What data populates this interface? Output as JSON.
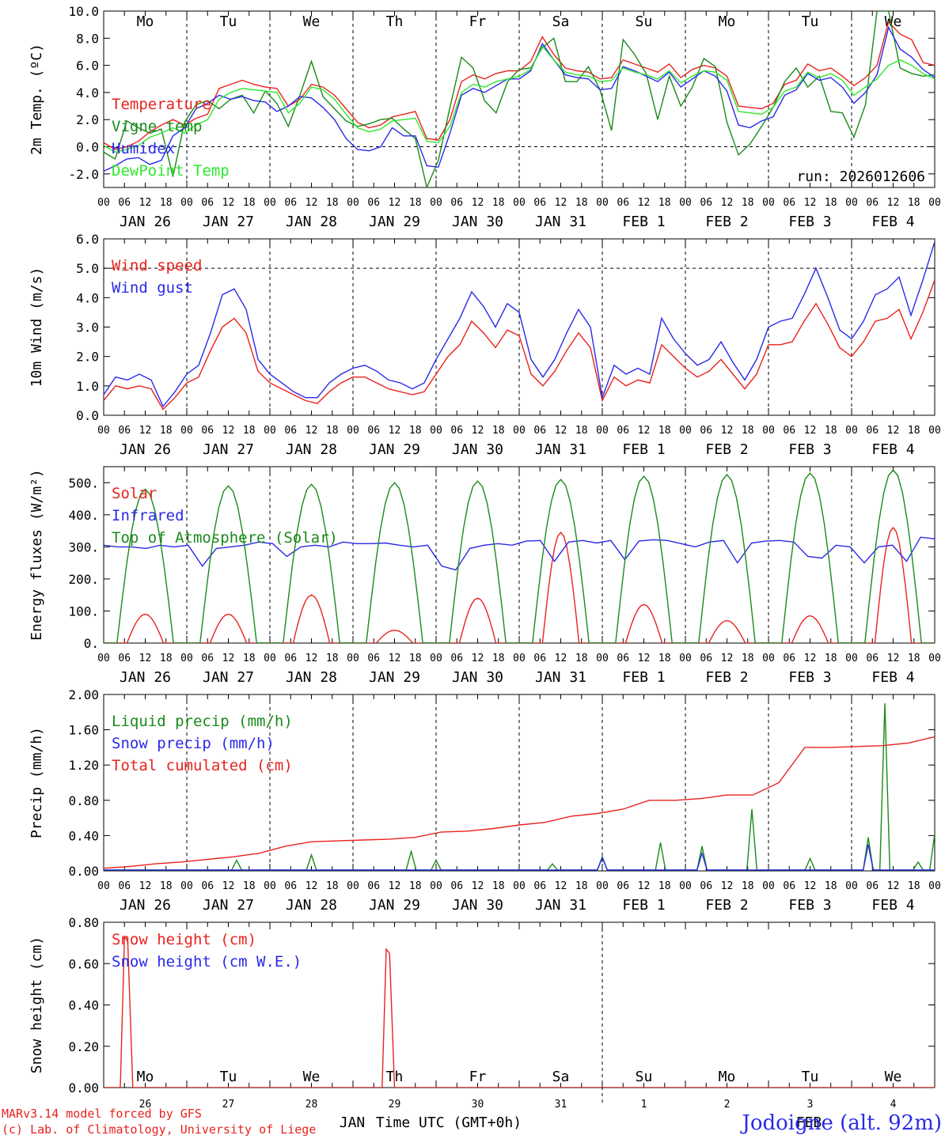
{
  "chart_data": [
    {
      "type": "line",
      "ylabel": "2m Temp. (ºC)",
      "ylim": [
        -3,
        10
      ],
      "yticks": [
        -2,
        0,
        2,
        4,
        6,
        8,
        10
      ],
      "ytick_labels": [
        "-2.0",
        "0.0",
        "2.0",
        "4.0",
        "6.0",
        "8.0",
        "10.0"
      ],
      "zero_line": 0,
      "weekdays": [
        "Mo",
        "Tu",
        "We",
        "Th",
        "Fr",
        "Sa",
        "Su",
        "Mo",
        "Tu",
        "We"
      ],
      "weekday_colors": [
        "#000000",
        "#000000",
        "#000000",
        "#000000",
        "#000000",
        "#e8231e",
        "#e8231e",
        "#000000",
        "#000000",
        "#000000"
      ],
      "annotation": "run: 2026012606",
      "series": [
        {
          "name": "Temperature",
          "color": "#e8231e",
          "values": [
            0.3,
            -0.2,
            0,
            0.4,
            1.1,
            1.6,
            2.0,
            1.6,
            2.1,
            2.4,
            4.3,
            4.6,
            4.9,
            4.6,
            4.4,
            4.3,
            3.0,
            3.5,
            4.6,
            4.4,
            3.8,
            2.8,
            1.8,
            1.4,
            1.6,
            2.2,
            2.4,
            2.6,
            0.6,
            0.5,
            2.0,
            4.8,
            5.3,
            5.0,
            5.4,
            5.6,
            5.6,
            6.3,
            8.1,
            6.8,
            5.8,
            5.6,
            5.5,
            5.0,
            5.1,
            6.4,
            6.1,
            5.8,
            5.5,
            6.1,
            5.1,
            5.7,
            6.0,
            5.8,
            5.2,
            3.0,
            2.9,
            2.8,
            3.2,
            4.6,
            4.9,
            6.1,
            5.6,
            5.8,
            5.2,
            4.5,
            5.1,
            6.0,
            9.2,
            8.3,
            7.9,
            6.2,
            6.0
          ]
        },
        {
          "name": "Vigne temp",
          "color": "#1a8a1a",
          "values": [
            -0.4,
            -0.9,
            1.9,
            1.4,
            1.0,
            1.3,
            -2.2,
            1.8,
            3.1,
            3.4,
            2.8,
            3.5,
            3.8,
            2.5,
            4.1,
            3.2,
            1.5,
            3.8,
            6.3,
            3.7,
            2.8,
            1.9,
            1.5,
            1.7,
            2.0,
            2.1,
            1.3,
            0.6,
            -3.0,
            -1.0,
            2.9,
            6.6,
            5.8,
            3.4,
            2.5,
            4.8,
            5.7,
            5.8,
            7.3,
            8.0,
            4.8,
            4.8,
            5.9,
            4.2,
            1.2,
            7.9,
            6.8,
            5.4,
            2.0,
            5.2,
            3.0,
            4.4,
            6.5,
            5.9,
            1.8,
            -0.6,
            0.2,
            1.5,
            2.9,
            4.8,
            5.8,
            4.4,
            5.2,
            2.6,
            2.5,
            0.7,
            3.1,
            10.0,
            10.0,
            5.8,
            5.4,
            5.2,
            5.3
          ]
        },
        {
          "name": "Humidex",
          "color": "#2a2ae8",
          "values": [
            -1.8,
            -1.4,
            -0.9,
            -0.8,
            -1.3,
            -1.0,
            0.8,
            1.4,
            2.8,
            3.2,
            3.8,
            3.5,
            3.7,
            3.4,
            3.3,
            2.6,
            3.0,
            3.7,
            3.6,
            2.9,
            2.0,
            0.6,
            -0.2,
            -0.3,
            0.0,
            1.4,
            0.8,
            0.8,
            -1.4,
            -1.5,
            1.0,
            3.8,
            4.3,
            4.0,
            4.5,
            5.0,
            5.0,
            5.6,
            7.6,
            6.4,
            5.3,
            5.1,
            5.0,
            4.2,
            4.3,
            5.9,
            5.6,
            5.2,
            4.8,
            5.5,
            4.4,
            5.0,
            5.6,
            5.2,
            4.1,
            1.6,
            1.4,
            1.9,
            2.2,
            3.8,
            4.2,
            5.4,
            4.9,
            5.1,
            4.4,
            3.2,
            4.0,
            5.3,
            8.8,
            7.2,
            6.6,
            5.7,
            5.1
          ]
        },
        {
          "name": "DewPoint Temp",
          "color": "#2ee82e",
          "values": [
            0.1,
            -0.4,
            -0.2,
            0.1,
            0.7,
            1.0,
            1.4,
            1.0,
            1.6,
            2.0,
            3.5,
            4.0,
            4.3,
            4.2,
            4.1,
            4.0,
            2.5,
            3.2,
            4.4,
            4.2,
            3.5,
            2.4,
            1.4,
            1.1,
            1.3,
            1.9,
            2.0,
            2.1,
            0.4,
            0.3,
            1.5,
            4.0,
            4.6,
            4.4,
            4.8,
            5.0,
            5.2,
            5.7,
            7.4,
            6.4,
            5.5,
            5.3,
            5.2,
            4.8,
            4.9,
            5.8,
            5.5,
            5.3,
            5.0,
            5.6,
            4.7,
            5.2,
            5.6,
            5.5,
            4.9,
            2.6,
            2.5,
            2.4,
            2.9,
            4.1,
            4.4,
            5.5,
            5.1,
            5.4,
            4.9,
            3.8,
            4.4,
            5.0,
            6.0,
            6.4,
            6.0,
            5.4,
            5.0
          ]
        }
      ]
    },
    {
      "type": "line",
      "ylabel": "10m Wind (m/s)",
      "ylim": [
        0,
        6
      ],
      "yticks": [
        0,
        1,
        2,
        3,
        4,
        5,
        6
      ],
      "ytick_labels": [
        "0.0",
        "1.0",
        "2.0",
        "3.0",
        "4.0",
        "5.0",
        "6.0"
      ],
      "ref_line": 5,
      "series": [
        {
          "name": "Wind speed",
          "color": "#e8231e",
          "values": [
            0.5,
            1.0,
            0.9,
            1.0,
            0.9,
            0.2,
            0.6,
            1.1,
            1.3,
            2.2,
            3.0,
            3.3,
            2.8,
            1.5,
            1.1,
            0.9,
            0.7,
            0.5,
            0.4,
            0.8,
            1.1,
            1.3,
            1.3,
            1.1,
            0.9,
            0.8,
            0.7,
            0.8,
            1.4,
            2.0,
            2.4,
            3.2,
            2.8,
            2.3,
            2.9,
            2.7,
            1.4,
            1.0,
            1.5,
            2.2,
            2.8,
            2.3,
            0.5,
            1.3,
            1.0,
            1.2,
            1.1,
            2.4,
            2.0,
            1.6,
            1.3,
            1.5,
            1.9,
            1.4,
            0.9,
            1.4,
            2.4,
            2.4,
            2.5,
            3.2,
            3.8,
            3.1,
            2.3,
            2.0,
            2.5,
            3.2,
            3.3,
            3.6,
            2.6,
            3.5,
            4.6
          ]
        },
        {
          "name": "Wind gust",
          "color": "#2a2ae8",
          "values": [
            0.7,
            1.3,
            1.2,
            1.4,
            1.2,
            0.3,
            0.8,
            1.4,
            1.7,
            2.8,
            4.1,
            4.3,
            3.6,
            1.9,
            1.4,
            1.1,
            0.8,
            0.6,
            0.6,
            1.1,
            1.4,
            1.6,
            1.7,
            1.5,
            1.2,
            1.1,
            0.9,
            1.1,
            1.9,
            2.6,
            3.3,
            4.2,
            3.7,
            3.0,
            3.8,
            3.5,
            1.9,
            1.3,
            1.9,
            2.8,
            3.6,
            3.0,
            0.6,
            1.7,
            1.4,
            1.6,
            1.4,
            3.3,
            2.6,
            2.1,
            1.7,
            1.9,
            2.5,
            1.8,
            1.2,
            1.9,
            3.0,
            3.2,
            3.3,
            4.1,
            5.0,
            4.0,
            2.9,
            2.6,
            3.2,
            4.1,
            4.3,
            4.7,
            3.4,
            4.6,
            5.9
          ]
        }
      ]
    },
    {
      "type": "line",
      "ylabel": "Energy fluxes (W/m²)",
      "ylim": [
        0,
        550
      ],
      "yticks": [
        0,
        100,
        200,
        300,
        400,
        500
      ],
      "ytick_labels": [
        "0.",
        "100.",
        "200.",
        "300.",
        "400.",
        "500."
      ],
      "series": [
        {
          "name": "Solar",
          "color": "#e8231e",
          "peaks": [
            90,
            90,
            150,
            40,
            140,
            345,
            120,
            70,
            85,
            360
          ]
        },
        {
          "name": "Infrared",
          "color": "#2a2ae8",
          "values": [
            305,
            300,
            300,
            295,
            305,
            300,
            305,
            240,
            295,
            300,
            305,
            315,
            310,
            270,
            300,
            305,
            300,
            315,
            310,
            310,
            312,
            305,
            300,
            305,
            240,
            228,
            295,
            305,
            310,
            305,
            318,
            320,
            255,
            315,
            320,
            312,
            320,
            260,
            318,
            322,
            320,
            310,
            300,
            315,
            320,
            250,
            312,
            318,
            320,
            315,
            270,
            265,
            305,
            300,
            250,
            300,
            305,
            255,
            330,
            325
          ]
        },
        {
          "name": "Top of Atmosphere (Solar)",
          "color": "#1a8a1a",
          "peaks": [
            480,
            490,
            495,
            500,
            505,
            510,
            520,
            525,
            530,
            540
          ]
        }
      ]
    },
    {
      "type": "line",
      "ylabel": "Precip (mm/h)",
      "ylim": [
        0,
        2
      ],
      "yticks": [
        0,
        0.4,
        0.8,
        1.2,
        1.6,
        2.0
      ],
      "ytick_labels": [
        "0.00",
        "0.40",
        "0.80",
        "1.20",
        "1.60",
        "2.00"
      ],
      "series": [
        {
          "name": "Liquid precip (mm/h)",
          "color": "#1a8a1a",
          "events": [
            [
              1.6,
              0.12
            ],
            [
              2.5,
              0.18
            ],
            [
              3.7,
              0.22
            ],
            [
              4.0,
              0.12
            ],
            [
              5.4,
              0.08
            ],
            [
              6.0,
              0.16
            ],
            [
              6.7,
              0.32
            ],
            [
              7.2,
              0.28
            ],
            [
              7.8,
              0.7
            ],
            [
              8.5,
              0.14
            ],
            [
              9.2,
              0.38
            ],
            [
              9.4,
              1.9
            ],
            [
              9.8,
              0.1
            ],
            [
              10.0,
              0.42
            ]
          ]
        },
        {
          "name": "Snow precip (mm/h)",
          "color": "#2a2ae8",
          "events": [
            [
              6.0,
              0.15
            ],
            [
              7.2,
              0.2
            ],
            [
              9.2,
              0.3
            ]
          ]
        },
        {
          "name": "Total cumulated (cm)",
          "color": "#e8231e",
          "values": [
            0.03,
            0.05,
            0.08,
            0.1,
            0.13,
            0.16,
            0.2,
            0.28,
            0.33,
            0.34,
            0.35,
            0.36,
            0.38,
            0.44,
            0.45,
            0.48,
            0.52,
            0.55,
            0.62,
            0.65,
            0.7,
            0.8,
            0.8,
            0.82,
            0.86,
            0.86,
            1.0,
            1.4,
            1.4,
            1.41,
            1.42,
            1.45,
            1.52
          ]
        }
      ]
    },
    {
      "type": "line",
      "ylabel": "Snow height (cm)",
      "ylim": [
        0,
        0.8
      ],
      "yticks": [
        0,
        0.2,
        0.4,
        0.6,
        0.8
      ],
      "ytick_labels": [
        "0.00",
        "0.20",
        "0.40",
        "0.60",
        "0.80"
      ],
      "weekdays": [
        "Mo",
        "Tu",
        "We",
        "Th",
        "Fr",
        "Sa",
        "Su",
        "Mo",
        "Tu",
        "We"
      ],
      "weekday_colors": [
        "#000000",
        "#000000",
        "#000000",
        "#000000",
        "#000000",
        "#e8231e",
        "#e8231e",
        "#000000",
        "#000000",
        "#000000"
      ],
      "daynums": [
        "26",
        "27",
        "28",
        "29",
        "30",
        "31",
        "1",
        "2",
        "3",
        "4"
      ],
      "month_left": "JAN",
      "month_right": "FEB",
      "xlabel": "Time UTC (GMT+0h)",
      "series": [
        {
          "name": "Snow height (cm)",
          "color": "#e8231e",
          "spikes": [
            [
              0.25,
              0.73
            ],
            [
              3.4,
              0.67
            ]
          ]
        },
        {
          "name": "Snow height (cm W.E.)",
          "color": "#2a2ae8",
          "values": []
        }
      ]
    }
  ],
  "date_labels": [
    "JAN 26",
    "JAN 27",
    "JAN 28",
    "JAN 29",
    "JAN 30",
    "JAN 31",
    "FEB  1",
    "FEB  2",
    "FEB  3",
    "FEB  4"
  ],
  "hour_labels": [
    "00",
    "06",
    "12",
    "18"
  ],
  "footer": {
    "model": "MARv3.14 model forced by GFS",
    "copyright": "(c) Lab. of Climatology, University of Liege",
    "site": "Jodoigne (alt. 92m)"
  }
}
